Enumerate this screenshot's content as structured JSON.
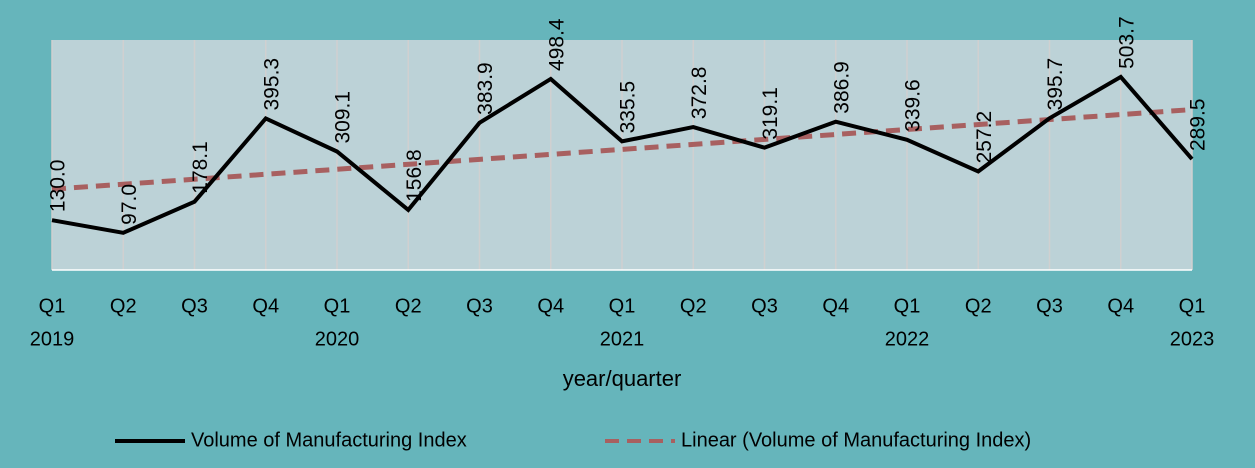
{
  "chart_data": {
    "type": "line",
    "x_label": "year/quarter",
    "categories": [
      [
        "Q1",
        "2019"
      ],
      [
        "Q2"
      ],
      [
        "Q3"
      ],
      [
        "Q4"
      ],
      [
        "Q1",
        "2020"
      ],
      [
        "Q2"
      ],
      [
        "Q3"
      ],
      [
        "Q4"
      ],
      [
        "Q1",
        "2021"
      ],
      [
        "Q2"
      ],
      [
        "Q3"
      ],
      [
        "Q4"
      ],
      [
        "Q1",
        "2022"
      ],
      [
        "Q2"
      ],
      [
        "Q3"
      ],
      [
        "Q4"
      ],
      [
        "Q1",
        "2023"
      ]
    ],
    "series": [
      {
        "name": "Volume of Manufacturing Index",
        "color": "#000000",
        "values": [
          130,
          97,
          178.1,
          395.3,
          309.1,
          156.8,
          383.9,
          498.4,
          335.5,
          372.8,
          319.1,
          386.9,
          339.6,
          257.2,
          395.7,
          503.7,
          289.5
        ],
        "value_labels": [
          "130.0",
          "97.0",
          "178.1",
          "395.3",
          "309.1",
          "156.8",
          "383.9",
          "498.4",
          "335.5",
          "372.8",
          "319.1",
          "386.9",
          "339.6",
          "257.2",
          "395.7",
          "503.7",
          "289.5"
        ]
      },
      {
        "name": "Linear (Volume of Manufacturing Index)",
        "color": "#a86060",
        "trendline": "linear",
        "dashed": true
      }
    ],
    "ylim": [
      0,
      600
    ],
    "grid": true,
    "legend": "bottom"
  }
}
